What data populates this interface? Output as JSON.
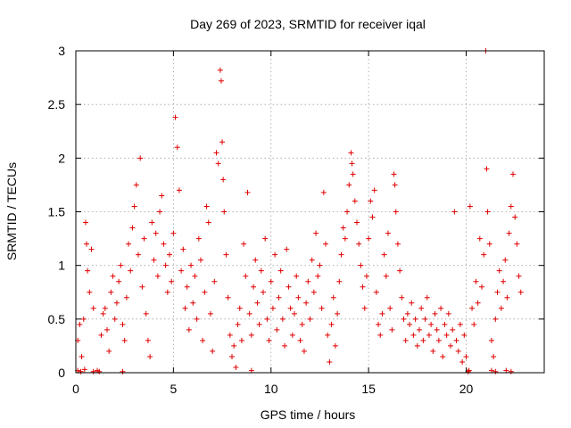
{
  "chart_data": {
    "type": "scatter",
    "title": "Day 269 of 2023, SRMTID for receiver iqal",
    "xlabel": "GPS time / hours",
    "ylabel": "SRMTID / TECUs",
    "xlim": [
      0,
      24
    ],
    "ylim": [
      0,
      3
    ],
    "xticks": [
      0,
      5,
      10,
      15,
      20
    ],
    "yticks": [
      0,
      0.5,
      1,
      1.5,
      2,
      2.5,
      3
    ],
    "xtick_labels": [
      "0",
      "5",
      "10",
      "15",
      "20"
    ],
    "ytick_labels": [
      "0",
      "0.5",
      "1",
      "1.5",
      "2",
      "2.5",
      "3"
    ],
    "grid": true,
    "marker": "+",
    "color": "#e00000",
    "series": [
      {
        "name": "SRMTID",
        "points": [
          [
            0.1,
            0.3
          ],
          [
            0.2,
            0.45
          ],
          [
            0.3,
            0.15
          ],
          [
            0.4,
            0.5
          ],
          [
            0.5,
            1.4
          ],
          [
            0.55,
            1.2
          ],
          [
            0.6,
            0.95
          ],
          [
            0.7,
            0.75
          ],
          [
            0.8,
            1.15
          ],
          [
            0.9,
            0.6
          ],
          [
            0.1,
            0.02
          ],
          [
            0.25,
            0.01
          ],
          [
            0.45,
            0.03
          ],
          [
            0.9,
            0.01
          ],
          [
            1.1,
            0.02
          ],
          [
            1.2,
            0.01
          ],
          [
            1.3,
            0.35
          ],
          [
            1.4,
            0.55
          ],
          [
            1.5,
            0.6
          ],
          [
            1.6,
            0.4
          ],
          [
            1.7,
            0.2
          ],
          [
            1.8,
            0.75
          ],
          [
            1.9,
            0.9
          ],
          [
            2.0,
            0.5
          ],
          [
            2.1,
            0.65
          ],
          [
            2.2,
            0.85
          ],
          [
            2.3,
            1.0
          ],
          [
            2.4,
            0.45
          ],
          [
            2.5,
            0.3
          ],
          [
            2.6,
            0.7
          ],
          [
            2.7,
            1.2
          ],
          [
            2.8,
            0.95
          ],
          [
            2.9,
            1.35
          ],
          [
            3.0,
            1.55
          ],
          [
            3.1,
            1.75
          ],
          [
            3.2,
            1.1
          ],
          [
            3.3,
            2.0
          ],
          [
            3.4,
            0.8
          ],
          [
            3.5,
            1.25
          ],
          [
            3.6,
            0.55
          ],
          [
            3.7,
            0.3
          ],
          [
            3.8,
            0.15
          ],
          [
            3.9,
            1.4
          ],
          [
            4.0,
            1.05
          ],
          [
            4.1,
            1.3
          ],
          [
            4.2,
            0.9
          ],
          [
            4.3,
            1.5
          ],
          [
            4.4,
            1.65
          ],
          [
            4.5,
            1.2
          ],
          [
            4.6,
            1.0
          ],
          [
            4.7,
            0.75
          ],
          [
            4.8,
            1.1
          ],
          [
            4.9,
            0.85
          ],
          [
            5.0,
            1.3
          ],
          [
            5.1,
            2.38
          ],
          [
            5.2,
            2.1
          ],
          [
            5.3,
            1.7
          ],
          [
            5.4,
            0.95
          ],
          [
            5.5,
            1.15
          ],
          [
            5.6,
            0.6
          ],
          [
            5.7,
            0.8
          ],
          [
            5.8,
            0.4
          ],
          [
            5.9,
            1.0
          ],
          [
            6.0,
            0.65
          ],
          [
            6.1,
            0.9
          ],
          [
            6.2,
            0.5
          ],
          [
            6.3,
            1.25
          ],
          [
            6.4,
            1.05
          ],
          [
            6.5,
            0.3
          ],
          [
            6.6,
            0.75
          ],
          [
            6.7,
            1.55
          ],
          [
            6.8,
            1.4
          ],
          [
            6.9,
            0.55
          ],
          [
            7.0,
            0.2
          ],
          [
            7.1,
            0.85
          ],
          [
            7.2,
            2.05
          ],
          [
            7.3,
            1.95
          ],
          [
            7.4,
            2.82
          ],
          [
            7.45,
            2.72
          ],
          [
            7.5,
            2.15
          ],
          [
            7.55,
            1.8
          ],
          [
            7.6,
            1.5
          ],
          [
            7.7,
            1.1
          ],
          [
            7.8,
            0.7
          ],
          [
            7.9,
            0.35
          ],
          [
            8.0,
            0.15
          ],
          [
            8.1,
            0.25
          ],
          [
            8.2,
            0.05
          ],
          [
            8.3,
            0.45
          ],
          [
            8.4,
            0.6
          ],
          [
            8.5,
            0.3
          ],
          [
            8.6,
            1.2
          ],
          [
            8.7,
            0.9
          ],
          [
            8.8,
            1.68
          ],
          [
            8.9,
            0.55
          ],
          [
            9.0,
            0.35
          ],
          [
            9.1,
            0.8
          ],
          [
            9.2,
            1.05
          ],
          [
            9.3,
            0.65
          ],
          [
            9.4,
            0.45
          ],
          [
            9.5,
            0.95
          ],
          [
            9.6,
            0.75
          ],
          [
            9.7,
            1.25
          ],
          [
            9.8,
            0.5
          ],
          [
            9.9,
            0.3
          ],
          [
            10.0,
            0.85
          ],
          [
            10.1,
            0.6
          ],
          [
            10.2,
            1.1
          ],
          [
            10.3,
            0.4
          ],
          [
            10.4,
            0.7
          ],
          [
            10.5,
            0.95
          ],
          [
            10.6,
            0.5
          ],
          [
            10.7,
            0.25
          ],
          [
            10.8,
            1.15
          ],
          [
            10.9,
            0.8
          ],
          [
            11.0,
            0.6
          ],
          [
            11.1,
            0.35
          ],
          [
            11.2,
            0.55
          ],
          [
            11.3,
            0.9
          ],
          [
            11.4,
            0.7
          ],
          [
            11.5,
            0.3
          ],
          [
            11.6,
            0.45
          ],
          [
            11.7,
            0.2
          ],
          [
            11.8,
            0.65
          ],
          [
            11.9,
            0.85
          ],
          [
            12.0,
            0.5
          ],
          [
            12.1,
            1.05
          ],
          [
            12.2,
            0.75
          ],
          [
            12.3,
            1.3
          ],
          [
            12.4,
            0.9
          ],
          [
            12.5,
            1.0
          ],
          [
            12.6,
            0.6
          ],
          [
            12.7,
            1.68
          ],
          [
            12.8,
            1.2
          ],
          [
            12.9,
            0.35
          ],
          [
            13.0,
            0.1
          ],
          [
            13.1,
            0.45
          ],
          [
            13.2,
            0.7
          ],
          [
            13.3,
            0.25
          ],
          [
            13.4,
            0.55
          ],
          [
            13.5,
            0.85
          ],
          [
            13.6,
            1.1
          ],
          [
            13.7,
            1.35
          ],
          [
            13.8,
            1.25
          ],
          [
            13.9,
            1.5
          ],
          [
            14.0,
            1.75
          ],
          [
            14.1,
            2.05
          ],
          [
            14.15,
            1.95
          ],
          [
            14.2,
            1.85
          ],
          [
            14.3,
            1.6
          ],
          [
            14.4,
            1.4
          ],
          [
            14.5,
            1.2
          ],
          [
            14.6,
            1.0
          ],
          [
            14.7,
            0.8
          ],
          [
            14.8,
            0.6
          ],
          [
            14.9,
            0.9
          ],
          [
            15.0,
            1.25
          ],
          [
            15.1,
            1.6
          ],
          [
            15.2,
            1.45
          ],
          [
            15.3,
            1.7
          ],
          [
            15.4,
            0.75
          ],
          [
            15.5,
            0.45
          ],
          [
            15.6,
            0.35
          ],
          [
            15.7,
            0.55
          ],
          [
            15.8,
            1.1
          ],
          [
            15.9,
            0.9
          ],
          [
            16.0,
            1.3
          ],
          [
            16.1,
            0.6
          ],
          [
            16.2,
            0.4
          ],
          [
            16.3,
            1.85
          ],
          [
            16.35,
            1.75
          ],
          [
            16.4,
            1.5
          ],
          [
            16.5,
            1.2
          ],
          [
            16.6,
            0.95
          ],
          [
            16.7,
            0.7
          ],
          [
            16.8,
            0.5
          ],
          [
            16.9,
            0.3
          ],
          [
            17.0,
            0.55
          ],
          [
            17.1,
            0.45
          ],
          [
            17.2,
            0.65
          ],
          [
            17.3,
            0.35
          ],
          [
            17.4,
            0.5
          ],
          [
            17.5,
            0.25
          ],
          [
            17.6,
            0.4
          ],
          [
            17.7,
            0.6
          ],
          [
            17.8,
            0.3
          ],
          [
            17.9,
            0.5
          ],
          [
            18.0,
            0.7
          ],
          [
            18.1,
            0.35
          ],
          [
            18.2,
            0.45
          ],
          [
            18.3,
            0.2
          ],
          [
            18.4,
            0.55
          ],
          [
            18.5,
            0.4
          ],
          [
            18.6,
            0.3
          ],
          [
            18.7,
            0.6
          ],
          [
            18.8,
            0.15
          ],
          [
            18.9,
            0.45
          ],
          [
            19.0,
            0.35
          ],
          [
            19.1,
            0.55
          ],
          [
            19.2,
            0.25
          ],
          [
            19.3,
            0.4
          ],
          [
            19.4,
            1.5
          ],
          [
            19.5,
            0.3
          ],
          [
            19.6,
            0.2
          ],
          [
            19.7,
            0.45
          ],
          [
            19.8,
            0.1
          ],
          [
            19.9,
            0.35
          ],
          [
            20.0,
            0.15
          ],
          [
            20.2,
            1.55
          ],
          [
            20.3,
            0.6
          ],
          [
            20.4,
            0.45
          ],
          [
            20.5,
            0.85
          ],
          [
            20.6,
            0.65
          ],
          [
            20.7,
            1.25
          ],
          [
            20.8,
            0.8
          ],
          [
            20.9,
            1.1
          ],
          [
            21.0,
            3.0
          ],
          [
            21.05,
            1.9
          ],
          [
            21.1,
            1.5
          ],
          [
            21.2,
            1.2
          ],
          [
            21.3,
            0.3
          ],
          [
            21.4,
            0.15
          ],
          [
            21.5,
            0.5
          ],
          [
            21.6,
            0.75
          ],
          [
            21.7,
            0.95
          ],
          [
            21.8,
            0.6
          ],
          [
            21.9,
            0.85
          ],
          [
            22.0,
            1.05
          ],
          [
            22.1,
            0.7
          ],
          [
            22.2,
            1.3
          ],
          [
            22.3,
            1.55
          ],
          [
            22.4,
            1.85
          ],
          [
            22.5,
            1.45
          ],
          [
            22.6,
            1.2
          ],
          [
            22.7,
            0.9
          ],
          [
            22.8,
            0.75
          ],
          [
            20.1,
            0.01
          ],
          [
            20.15,
            0.02
          ],
          [
            21.3,
            0.02
          ],
          [
            21.5,
            0.01
          ],
          [
            22.05,
            0.02
          ],
          [
            22.3,
            0.01
          ],
          [
            2.4,
            0.01
          ],
          [
            9.0,
            0.02
          ]
        ]
      }
    ]
  }
}
